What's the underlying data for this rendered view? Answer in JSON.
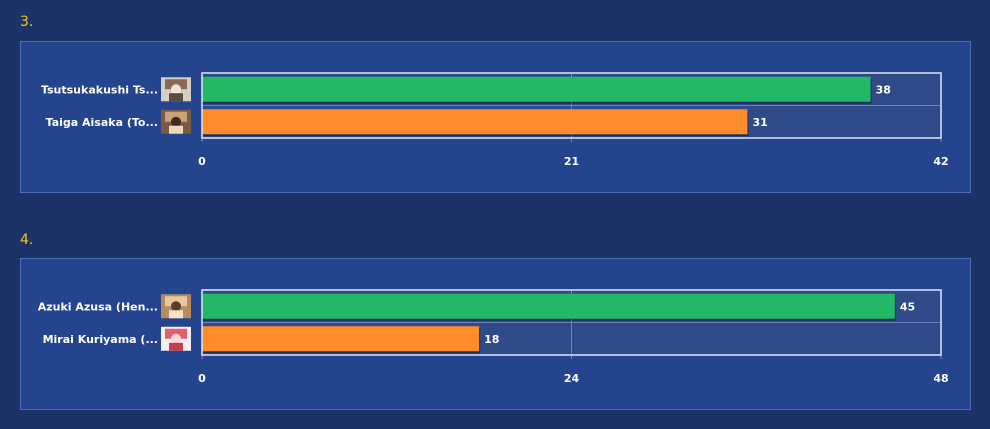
{
  "sections": [
    {
      "number": "3.",
      "chart_data": {
        "type": "bar",
        "orientation": "horizontal",
        "categories": [
          "Tsutsukakushi Ts...",
          "Taiga Aisaka (To..."
        ],
        "values": [
          38,
          31
        ],
        "bar_colors": [
          "#22b866",
          "#ff8c2a"
        ],
        "xlim": [
          0,
          42
        ],
        "xticks": [
          "0",
          "21",
          "42"
        ],
        "grid": true,
        "avatars": [
          "avatar-tsutsukakushi",
          "avatar-taiga"
        ]
      }
    },
    {
      "number": "4.",
      "chart_data": {
        "type": "bar",
        "orientation": "horizontal",
        "categories": [
          "Azuki Azusa (Hen...",
          "Mirai Kuriyama (..."
        ],
        "values": [
          45,
          18
        ],
        "bar_colors": [
          "#22b866",
          "#ff8c2a"
        ],
        "xlim": [
          0,
          48
        ],
        "xticks": [
          "0",
          "24",
          "48"
        ],
        "grid": true,
        "avatars": [
          "avatar-azuki",
          "avatar-mirai"
        ]
      }
    }
  ],
  "colors": {
    "page_bg": "#1b3366",
    "panel_bg": "#24448e",
    "plot_bg": "#2e4a88",
    "accent": "#f5c518"
  }
}
